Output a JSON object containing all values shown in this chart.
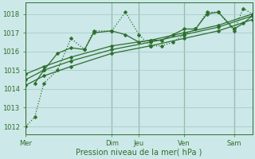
{
  "bg_color": "#cce8e8",
  "grid_color": "#aacccc",
  "line_color": "#2d6e2d",
  "dark_line": "#1a4a1a",
  "title": "Pression niveau de la mer( hPa )",
  "ylabel_ticks": [
    1012,
    1013,
    1014,
    1015,
    1016,
    1017,
    1018
  ],
  "xlim": [
    0,
    100
  ],
  "ylim": [
    1011.6,
    1018.6
  ],
  "xtick_positions": [
    0,
    38,
    50,
    70,
    92
  ],
  "xtick_labels": [
    "Mer",
    "Dim",
    "Jeu",
    "Ven",
    "Sam"
  ],
  "vline_positions": [
    0,
    38,
    50,
    70,
    92
  ],
  "series": [
    {
      "x": [
        0,
        4,
        8,
        14,
        20,
        26,
        30,
        38,
        44,
        50,
        55,
        60,
        65,
        70,
        75,
        80,
        85,
        92,
        96,
        100
      ],
      "y": [
        1012.0,
        1012.5,
        1014.3,
        1015.0,
        1016.7,
        1016.1,
        1017.1,
        1017.1,
        1018.1,
        1016.9,
        1016.3,
        1016.3,
        1016.5,
        1016.9,
        1017.2,
        1018.1,
        1018.1,
        1017.1,
        1018.3,
        1018.0
      ],
      "linestyle": "dotted",
      "linewidth": 0.9,
      "marker": "P",
      "markersize": 2.5
    },
    {
      "x": [
        0,
        8,
        20,
        38,
        55,
        70,
        85,
        100
      ],
      "y": [
        1014.2,
        1014.7,
        1015.2,
        1015.9,
        1016.3,
        1016.7,
        1017.1,
        1017.7
      ],
      "linestyle": "solid",
      "linewidth": 0.9,
      "marker": "P",
      "markersize": 2.5
    },
    {
      "x": [
        0,
        8,
        20,
        38,
        55,
        70,
        85,
        100
      ],
      "y": [
        1014.5,
        1015.0,
        1015.5,
        1016.1,
        1016.5,
        1016.9,
        1017.3,
        1017.9
      ],
      "linestyle": "solid",
      "linewidth": 0.9,
      "marker": "P",
      "markersize": 2.5
    },
    {
      "x": [
        0,
        8,
        20,
        38,
        55,
        70,
        85,
        100
      ],
      "y": [
        1014.8,
        1015.2,
        1015.7,
        1016.3,
        1016.6,
        1017.0,
        1017.4,
        1018.0
      ],
      "linestyle": "solid",
      "linewidth": 0.9,
      "marker": "P",
      "markersize": 2.5
    },
    {
      "x": [
        4,
        8,
        14,
        20,
        26,
        30,
        38,
        44,
        50,
        55,
        60,
        65,
        70,
        75,
        80,
        85,
        92,
        96,
        100
      ],
      "y": [
        1014.3,
        1015.0,
        1015.9,
        1016.2,
        1016.1,
        1017.0,
        1017.1,
        1016.9,
        1016.5,
        1016.6,
        1016.6,
        1016.9,
        1017.2,
        1017.2,
        1018.0,
        1018.1,
        1017.2,
        1017.5,
        1017.9
      ],
      "linestyle": "solid",
      "linewidth": 0.9,
      "marker": "P",
      "markersize": 2.5
    }
  ]
}
